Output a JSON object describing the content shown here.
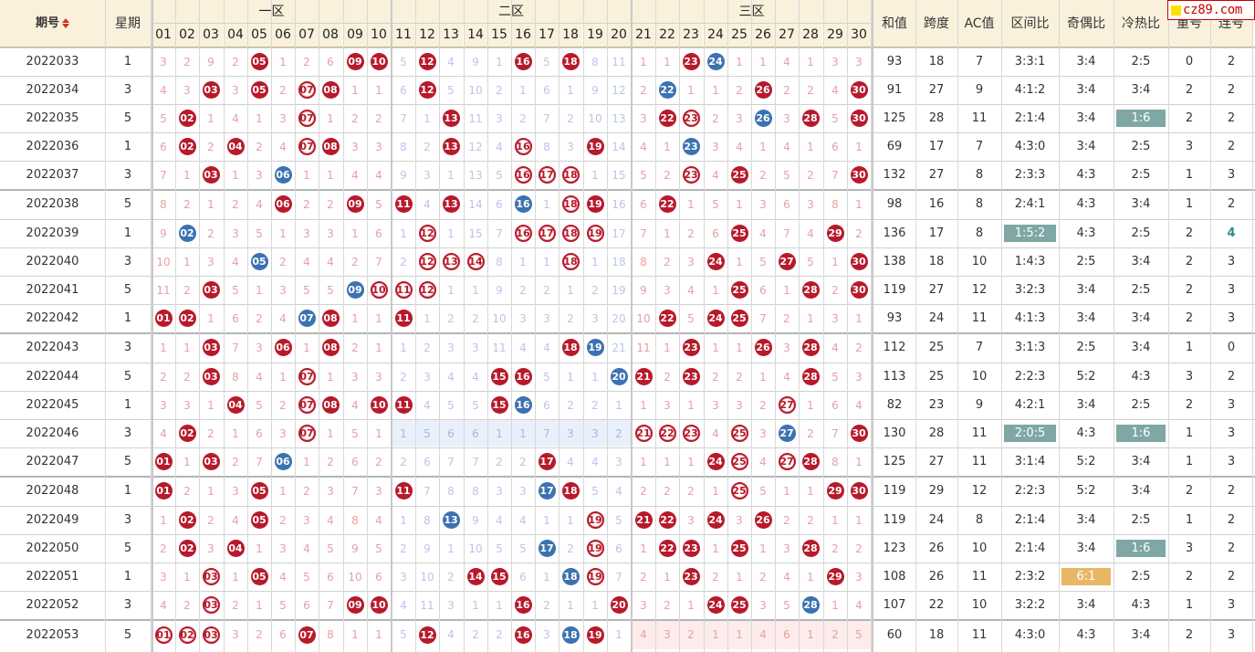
{
  "header": {
    "issue_label": "期号",
    "weekday_label": "星期",
    "zones": [
      "一区",
      "二区",
      "三区"
    ],
    "numbers": [
      "01",
      "02",
      "03",
      "04",
      "05",
      "06",
      "07",
      "08",
      "09",
      "10",
      "11",
      "12",
      "13",
      "14",
      "15",
      "16",
      "17",
      "18",
      "19",
      "20",
      "21",
      "22",
      "23",
      "24",
      "25",
      "26",
      "27",
      "28",
      "29",
      "30"
    ],
    "stat_labels": [
      "和值",
      "跨度",
      "AC值",
      "区间比",
      "奇偶比",
      "冷热比",
      "重号",
      "连号"
    ]
  },
  "watermark": {
    "text": "cz89.com"
  },
  "colors": {
    "red_ball": "#b8192b",
    "blue_ball": "#3c72b0",
    "header_bg": "#f9f1dc",
    "highlight_teal": "#7ea7a5",
    "highlight_gold": "#e7b765"
  },
  "rows": [
    {
      "issue": "2022033",
      "weekday": "1",
      "cells": [
        "3",
        "2",
        "9",
        "2",
        "r05",
        "1",
        "2",
        "6",
        "r09",
        "r10",
        "5",
        "r12",
        "4",
        "9",
        "1",
        "r16",
        "5",
        "r18",
        "8",
        "11",
        "1",
        "1",
        "r23",
        "b24",
        "1",
        "1",
        "4",
        "1",
        "3",
        "3"
      ],
      "stats": [
        "93",
        "18",
        "7",
        "3:3:1",
        "3:4",
        "2:5",
        "0",
        "2"
      ]
    },
    {
      "issue": "2022034",
      "weekday": "3",
      "cells": [
        "4",
        "3",
        "r03",
        "3",
        "r05",
        "2",
        "o07",
        "r08",
        "1",
        "1",
        "6",
        "r12",
        "5",
        "10",
        "2",
        "1",
        "6",
        "1",
        "9",
        "12",
        "2",
        "b22",
        "1",
        "1",
        "2",
        "r26",
        "2",
        "2",
        "4",
        "r30"
      ],
      "stats": [
        "91",
        "27",
        "9",
        "4:1:2",
        "3:4",
        "3:4",
        "2",
        "2"
      ]
    },
    {
      "issue": "2022035",
      "weekday": "5",
      "cells": [
        "5",
        "r02",
        "1",
        "4",
        "1",
        "3",
        "o07",
        "1",
        "2",
        "2",
        "7",
        "1",
        "r13",
        "11",
        "3",
        "2",
        "7",
        "2",
        "10",
        "13",
        "3",
        "r22",
        "o23",
        "2",
        "3",
        "b26",
        "3",
        "r28",
        "5",
        "r30"
      ],
      "stats": [
        "125",
        "28",
        "11",
        "2:1:4",
        "3:4",
        "1:6",
        "2",
        "2"
      ]
    },
    {
      "issue": "2022036",
      "weekday": "1",
      "cells": [
        "6",
        "r02",
        "2",
        "r04",
        "2",
        "4",
        "o07",
        "r08",
        "3",
        "3",
        "8",
        "2",
        "r13",
        "12",
        "4",
        "o16",
        "8",
        "3",
        "r19",
        "14",
        "4",
        "1",
        "b23",
        "3",
        "4",
        "1",
        "4",
        "1",
        "6",
        "1"
      ],
      "stats": [
        "69",
        "17",
        "7",
        "4:3:0",
        "3:4",
        "2:5",
        "3",
        "2"
      ]
    },
    {
      "issue": "2022037",
      "weekday": "3",
      "cells": [
        "7",
        "1",
        "r03",
        "1",
        "3",
        "b06",
        "1",
        "1",
        "4",
        "4",
        "9",
        "3",
        "1",
        "13",
        "5",
        "o16",
        "o17",
        "o18",
        "1",
        "15",
        "5",
        "2",
        "o23",
        "4",
        "r25",
        "2",
        "5",
        "2",
        "7",
        "r30"
      ],
      "stats": [
        "132",
        "27",
        "8",
        "2:3:3",
        "4:3",
        "2:5",
        "1",
        "3"
      ]
    },
    {
      "issue": "2022038",
      "weekday": "5",
      "cells": [
        "8",
        "2",
        "1",
        "2",
        "4",
        "r06",
        "2",
        "2",
        "r09",
        "5",
        "r11",
        "4",
        "r13",
        "14",
        "6",
        "b16",
        "1",
        "o18",
        "r19",
        "16",
        "6",
        "r22",
        "1",
        "5",
        "1",
        "3",
        "6",
        "3",
        "8",
        "1"
      ],
      "stats": [
        "98",
        "16",
        "8",
        "2:4:1",
        "4:3",
        "3:4",
        "1",
        "2"
      ]
    },
    {
      "issue": "2022039",
      "weekday": "1",
      "cells": [
        "9",
        "b02",
        "2",
        "3",
        "5",
        "1",
        "3",
        "3",
        "1",
        "6",
        "1",
        "o12",
        "1",
        "15",
        "7",
        "o16",
        "o17",
        "o18",
        "o19",
        "17",
        "7",
        "1",
        "2",
        "6",
        "r25",
        "4",
        "7",
        "4",
        "r29",
        "2"
      ],
      "stats": [
        "136",
        "17",
        "8",
        "1:5:2",
        "4:3",
        "2:5",
        "2",
        "4"
      ]
    },
    {
      "issue": "2022040",
      "weekday": "3",
      "cells": [
        "10",
        "1",
        "3",
        "4",
        "b05",
        "2",
        "4",
        "4",
        "2",
        "7",
        "2",
        "o12",
        "o13",
        "o14",
        "8",
        "1",
        "1",
        "o18",
        "1",
        "18",
        "8",
        "2",
        "3",
        "r24",
        "1",
        "5",
        "r27",
        "5",
        "1",
        "r30"
      ],
      "stats": [
        "138",
        "18",
        "10",
        "1:4:3",
        "2:5",
        "3:4",
        "2",
        "3"
      ]
    },
    {
      "issue": "2022041",
      "weekday": "5",
      "cells": [
        "11",
        "2",
        "r03",
        "5",
        "1",
        "3",
        "5",
        "5",
        "b09",
        "o10",
        "o11",
        "o12",
        "1",
        "1",
        "9",
        "2",
        "2",
        "1",
        "2",
        "19",
        "9",
        "3",
        "4",
        "1",
        "r25",
        "6",
        "1",
        "r28",
        "2",
        "r30"
      ],
      "stats": [
        "119",
        "27",
        "12",
        "3:2:3",
        "3:4",
        "2:5",
        "2",
        "3"
      ]
    },
    {
      "issue": "2022042",
      "weekday": "1",
      "cells": [
        "r01",
        "r02",
        "1",
        "6",
        "2",
        "4",
        "b07",
        "r08",
        "1",
        "1",
        "r11",
        "1",
        "2",
        "2",
        "10",
        "3",
        "3",
        "2",
        "3",
        "20",
        "10",
        "r22",
        "5",
        "r24",
        "r25",
        "7",
        "2",
        "1",
        "3",
        "1"
      ],
      "stats": [
        "93",
        "24",
        "11",
        "4:1:3",
        "3:4",
        "3:4",
        "2",
        "3"
      ]
    },
    {
      "issue": "2022043",
      "weekday": "3",
      "cells": [
        "1",
        "1",
        "r03",
        "7",
        "3",
        "r06",
        "1",
        "r08",
        "2",
        "1",
        "1",
        "2",
        "3",
        "3",
        "11",
        "4",
        "4",
        "r18",
        "b19",
        "21",
        "11",
        "1",
        "r23",
        "1",
        "1",
        "r26",
        "3",
        "r28",
        "4",
        "2"
      ],
      "stats": [
        "112",
        "25",
        "7",
        "3:1:3",
        "2:5",
        "3:4",
        "1",
        "0"
      ]
    },
    {
      "issue": "2022044",
      "weekday": "5",
      "cells": [
        "2",
        "2",
        "r03",
        "8",
        "4",
        "1",
        "o07",
        "1",
        "3",
        "3",
        "2",
        "3",
        "4",
        "4",
        "r15",
        "r16",
        "5",
        "1",
        "1",
        "b20",
        "r21",
        "2",
        "r23",
        "2",
        "2",
        "1",
        "4",
        "r28",
        "5",
        "3"
      ],
      "stats": [
        "113",
        "25",
        "10",
        "2:2:3",
        "5:2",
        "4:3",
        "3",
        "2"
      ]
    },
    {
      "issue": "2022045",
      "weekday": "1",
      "cells": [
        "3",
        "3",
        "1",
        "r04",
        "5",
        "2",
        "o07",
        "r08",
        "4",
        "r10",
        "r11",
        "4",
        "5",
        "5",
        "r15",
        "b16",
        "6",
        "2",
        "2",
        "1",
        "1",
        "3",
        "1",
        "3",
        "3",
        "2",
        "o27",
        "1",
        "6",
        "4"
      ],
      "stats": [
        "82",
        "23",
        "9",
        "4:2:1",
        "3:4",
        "2:5",
        "2",
        "3"
      ]
    },
    {
      "issue": "2022046",
      "weekday": "3",
      "cells": [
        "4",
        "r02",
        "2",
        "1",
        "6",
        "3",
        "o07",
        "1",
        "5",
        "1",
        "1",
        "5",
        "6",
        "6",
        "1",
        "1",
        "7",
        "3",
        "3",
        "2",
        "o21",
        "o22",
        "o23",
        "4",
        "o25",
        "3",
        "b27",
        "2",
        "7",
        "r30"
      ],
      "stats": [
        "130",
        "28",
        "11",
        "2:0:5",
        "4:3",
        "1:6",
        "1",
        "3"
      ]
    },
    {
      "issue": "2022047",
      "weekday": "5",
      "cells": [
        "r01",
        "1",
        "r03",
        "2",
        "7",
        "b06",
        "1",
        "2",
        "6",
        "2",
        "2",
        "6",
        "7",
        "7",
        "2",
        "2",
        "r17",
        "4",
        "4",
        "3",
        "1",
        "1",
        "1",
        "r24",
        "o25",
        "4",
        "o27",
        "r28",
        "8",
        "1"
      ],
      "stats": [
        "125",
        "27",
        "11",
        "3:1:4",
        "5:2",
        "3:4",
        "1",
        "3"
      ]
    },
    {
      "issue": "2022048",
      "weekday": "1",
      "cells": [
        "r01",
        "2",
        "1",
        "3",
        "r05",
        "1",
        "2",
        "3",
        "7",
        "3",
        "r11",
        "7",
        "8",
        "8",
        "3",
        "3",
        "b17",
        "r18",
        "5",
        "4",
        "2",
        "2",
        "2",
        "1",
        "o25",
        "5",
        "1",
        "1",
        "r29",
        "r30"
      ],
      "stats": [
        "119",
        "29",
        "12",
        "2:2:3",
        "5:2",
        "3:4",
        "2",
        "2"
      ]
    },
    {
      "issue": "2022049",
      "weekday": "3",
      "cells": [
        "1",
        "r02",
        "2",
        "4",
        "r05",
        "2",
        "3",
        "4",
        "8",
        "4",
        "1",
        "8",
        "b13",
        "9",
        "4",
        "4",
        "1",
        "1",
        "o19",
        "5",
        "r21",
        "r22",
        "3",
        "r24",
        "3",
        "r26",
        "2",
        "2",
        "1",
        "1"
      ],
      "stats": [
        "119",
        "24",
        "8",
        "2:1:4",
        "3:4",
        "2:5",
        "1",
        "2"
      ]
    },
    {
      "issue": "2022050",
      "weekday": "5",
      "cells": [
        "2",
        "r02",
        "3",
        "r04",
        "1",
        "3",
        "4",
        "5",
        "9",
        "5",
        "2",
        "9",
        "1",
        "10",
        "5",
        "5",
        "b17",
        "2",
        "o19",
        "6",
        "1",
        "r22",
        "r23",
        "1",
        "r25",
        "1",
        "3",
        "r28",
        "2",
        "2"
      ],
      "stats": [
        "123",
        "26",
        "10",
        "2:1:4",
        "3:4",
        "1:6",
        "3",
        "2"
      ]
    },
    {
      "issue": "2022051",
      "weekday": "1",
      "cells": [
        "3",
        "1",
        "o03",
        "1",
        "r05",
        "4",
        "5",
        "6",
        "10",
        "6",
        "3",
        "10",
        "2",
        "r14",
        "r15",
        "6",
        "1",
        "b18",
        "o19",
        "7",
        "2",
        "1",
        "r23",
        "2",
        "1",
        "2",
        "4",
        "1",
        "r29",
        "3"
      ],
      "stats": [
        "108",
        "26",
        "11",
        "2:3:2",
        "6:1",
        "2:5",
        "2",
        "2"
      ]
    },
    {
      "issue": "2022052",
      "weekday": "3",
      "cells": [
        "4",
        "2",
        "o03",
        "2",
        "1",
        "5",
        "6",
        "7",
        "r09",
        "r10",
        "4",
        "11",
        "3",
        "1",
        "1",
        "r16",
        "2",
        "1",
        "1",
        "r20",
        "3",
        "2",
        "1",
        "r24",
        "r25",
        "3",
        "5",
        "b28",
        "1",
        "4"
      ],
      "stats": [
        "107",
        "22",
        "10",
        "3:2:2",
        "3:4",
        "4:3",
        "1",
        "3"
      ]
    },
    {
      "issue": "2022053",
      "weekday": "5",
      "cells": [
        "o01",
        "o02",
        "o03",
        "3",
        "2",
        "6",
        "r07",
        "8",
        "1",
        "1",
        "5",
        "r12",
        "4",
        "2",
        "2",
        "r16",
        "3",
        "b18",
        "r19",
        "1",
        "4",
        "3",
        "2",
        "1",
        "1",
        "4",
        "6",
        "1",
        "2",
        "5"
      ],
      "stats": [
        "60",
        "18",
        "11",
        "4:3:0",
        "4:3",
        "3:4",
        "2",
        "3"
      ]
    }
  ]
}
